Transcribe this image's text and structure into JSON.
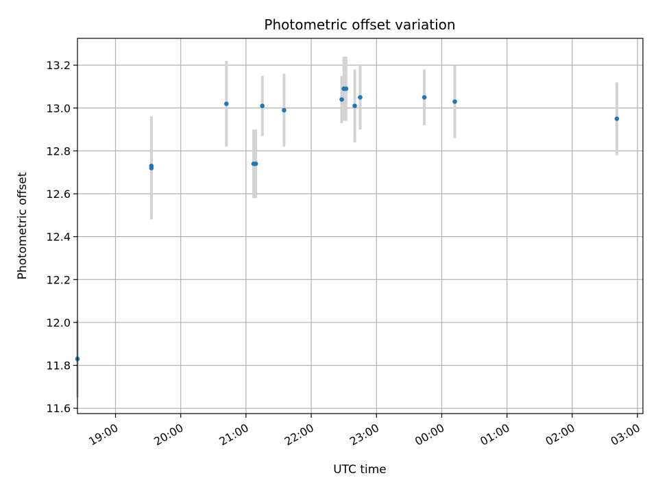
{
  "chart_data": {
    "type": "scatter",
    "title": "Photometric offset variation",
    "xlabel": "UTC time",
    "ylabel": "Photometric offset",
    "xlim": [
      "18:25",
      "03:05"
    ],
    "ylim": [
      11.575,
      13.325
    ],
    "grid": true,
    "x_ticks": [
      "19:00",
      "20:00",
      "21:00",
      "22:00",
      "23:00",
      "00:00",
      "01:00",
      "02:00",
      "03:00"
    ],
    "y_ticks": [
      "11.6",
      "11.8",
      "12.0",
      "12.2",
      "12.4",
      "12.6",
      "12.8",
      "13.0",
      "13.2"
    ],
    "marker_color": "#1f77b4",
    "errorbar_color": "#d3d3d3",
    "points": [
      {
        "x": "18:25",
        "y": 11.83,
        "err": 0.18
      },
      {
        "x": "19:33",
        "y": 12.72,
        "err": 0.24
      },
      {
        "x": "19:33",
        "y": 12.73,
        "err": 0.23
      },
      {
        "x": "20:42",
        "y": 13.02,
        "err": 0.2
      },
      {
        "x": "21:07",
        "y": 12.74,
        "err": 0.16
      },
      {
        "x": "21:09",
        "y": 12.74,
        "err": 0.16
      },
      {
        "x": "21:15",
        "y": 13.01,
        "err": 0.14
      },
      {
        "x": "21:35",
        "y": 12.99,
        "err": 0.17
      },
      {
        "x": "22:28",
        "y": 13.04,
        "err": 0.11
      },
      {
        "x": "22:30",
        "y": 13.09,
        "err": 0.15
      },
      {
        "x": "22:32",
        "y": 13.09,
        "err": 0.15
      },
      {
        "x": "22:40",
        "y": 13.01,
        "err": 0.17
      },
      {
        "x": "22:45",
        "y": 13.05,
        "err": 0.15
      },
      {
        "x": "23:44",
        "y": 13.05,
        "err": 0.13
      },
      {
        "x": "00:12",
        "y": 13.03,
        "err": 0.17
      },
      {
        "x": "02:41",
        "y": 12.95,
        "err": 0.17
      }
    ]
  }
}
